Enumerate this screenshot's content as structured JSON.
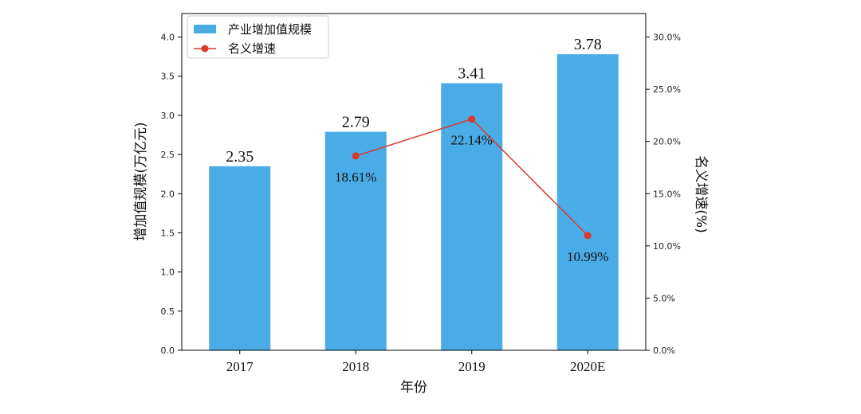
{
  "chart_data": {
    "type": "bar",
    "categories": [
      "2017",
      "2018",
      "2019",
      "2020E"
    ],
    "series": [
      {
        "name": "产业增加值规模",
        "type": "bar",
        "axis": "left",
        "values": [
          2.35,
          2.79,
          3.41,
          3.78
        ],
        "value_labels": [
          "2.35",
          "2.79",
          "3.41",
          "3.78"
        ]
      },
      {
        "name": "名义增速",
        "type": "line",
        "axis": "right",
        "x": [
          "2018",
          "2019",
          "2020E"
        ],
        "values": [
          18.61,
          22.14,
          10.99
        ],
        "value_labels": [
          "18.61%",
          "22.14%",
          "10.99%"
        ]
      }
    ],
    "xlabel": "年份",
    "ylabel": "增加值规模(万亿元)",
    "y2label": "名义增速(%)",
    "ylim": [
      0,
      4.3
    ],
    "y2lim": [
      0,
      32.25
    ],
    "yticks": [
      "0.0",
      "0.5",
      "1.0",
      "1.5",
      "2.0",
      "2.5",
      "3.0",
      "3.5",
      "4.0"
    ],
    "y2ticks": [
      "0.0%",
      "5.0%",
      "10.0%",
      "15.0%",
      "20.0%",
      "25.0%",
      "30.0%"
    ],
    "legend_position": "top-left",
    "grid": false,
    "colors": {
      "bar": "#4aace6",
      "line": "#d93a2b"
    }
  }
}
